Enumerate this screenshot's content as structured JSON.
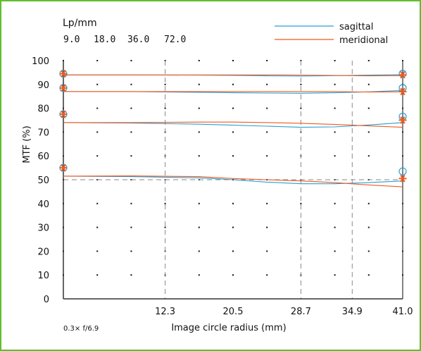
{
  "chart_data": {
    "type": "line",
    "unit_label": "Lp/mm",
    "frequencies": [
      "9.0",
      "18.0",
      "36.0",
      "72.0"
    ],
    "ylabel": "MTF (%)",
    "xlabel": "Image circle radius (mm)",
    "footnote": "0.3× f/6.9",
    "xlim": [
      0,
      41.0
    ],
    "ylim": [
      0,
      100
    ],
    "yticks": [
      "0",
      "10",
      "20",
      "30",
      "40",
      "50",
      "60",
      "70",
      "80",
      "90",
      "100"
    ],
    "xticks": [
      {
        "value": 12.3,
        "label": "12.3"
      },
      {
        "value": 20.5,
        "label": "20.5"
      },
      {
        "value": 28.7,
        "label": "28.7"
      },
      {
        "value": 34.9,
        "label": "34.9"
      },
      {
        "value": 41.0,
        "label": "41.0"
      }
    ],
    "dashed_vlines": [
      12.3,
      28.7,
      34.9
    ],
    "dashed_hline": 50,
    "dot_grid_x": [
      0,
      4.1,
      8.2,
      12.3,
      16.4,
      20.5,
      24.6,
      28.7,
      32.8,
      36.9,
      41.0
    ],
    "grid": "dots",
    "legend_position": "top-right",
    "colors": {
      "sagittal": "#2a9fd6",
      "meridional": "#f05a1e",
      "frame": "#5fbf2a"
    },
    "series": [
      {
        "name": "sagittal",
        "x": [
          0,
          8.2,
          16.4,
          20.5,
          24.6,
          28.7,
          32.8,
          36.9,
          41.0
        ],
        "values": [
          94.0,
          94.0,
          93.9,
          93.8,
          93.6,
          93.5,
          93.7,
          93.9,
          94.1
        ]
      },
      {
        "name": "meridional",
        "x": [
          0,
          8.2,
          16.4,
          20.5,
          24.6,
          28.7,
          32.8,
          36.9,
          41.0
        ],
        "values": [
          94.0,
          94.0,
          94.0,
          94.0,
          94.0,
          93.9,
          93.8,
          93.6,
          93.7
        ]
      },
      {
        "name": "sagittal",
        "x": [
          0,
          8.2,
          16.4,
          20.5,
          24.6,
          28.7,
          32.8,
          36.9,
          41.0
        ],
        "values": [
          87.0,
          87.0,
          86.7,
          86.5,
          86.4,
          86.3,
          86.5,
          86.9,
          87.5
        ]
      },
      {
        "name": "meridional",
        "x": [
          0,
          8.2,
          16.4,
          20.5,
          24.6,
          28.7,
          32.8,
          36.9,
          41.0
        ],
        "values": [
          87.0,
          87.0,
          87.0,
          87.0,
          87.0,
          87.0,
          87.0,
          86.8,
          86.9
        ]
      },
      {
        "name": "sagittal",
        "x": [
          0,
          8.2,
          16.4,
          20.5,
          24.6,
          28.7,
          32.8,
          36.9,
          41.0
        ],
        "values": [
          74.0,
          73.8,
          73.3,
          72.9,
          72.5,
          72.0,
          72.2,
          73.0,
          74.0
        ]
      },
      {
        "name": "meridional",
        "x": [
          0,
          8.2,
          16.4,
          20.5,
          24.6,
          28.7,
          32.8,
          36.9,
          41.0
        ],
        "values": [
          74.0,
          74.0,
          74.2,
          74.2,
          74.0,
          73.7,
          73.2,
          72.6,
          72.0
        ]
      },
      {
        "name": "sagittal",
        "x": [
          0,
          8.2,
          16.4,
          20.5,
          24.6,
          28.7,
          32.8,
          36.9,
          41.0
        ],
        "values": [
          51.5,
          51.3,
          50.8,
          50.0,
          49.0,
          48.3,
          48.3,
          48.8,
          49.5
        ]
      },
      {
        "name": "meridional",
        "x": [
          0,
          8.2,
          16.4,
          20.5,
          24.6,
          28.7,
          32.8,
          36.9,
          41.0
        ],
        "values": [
          51.5,
          51.6,
          51.3,
          50.5,
          50.0,
          49.5,
          48.8,
          47.8,
          47.0
        ]
      }
    ],
    "end_markers": {
      "left": {
        "x": 0,
        "values": [
          94.5,
          88.5,
          77.5,
          55.0
        ]
      },
      "right_circles": {
        "x": 41.0,
        "values": [
          94.5,
          88.5,
          76.5,
          53.5
        ]
      },
      "right_stars": {
        "x": 41.0,
        "values": [
          94.0,
          87.0,
          75.0,
          50.5
        ]
      }
    }
  },
  "legend": {
    "items": [
      {
        "label": "sagittal",
        "color": "#2a9fd6"
      },
      {
        "label": "meridional",
        "color": "#f05a1e"
      }
    ]
  }
}
